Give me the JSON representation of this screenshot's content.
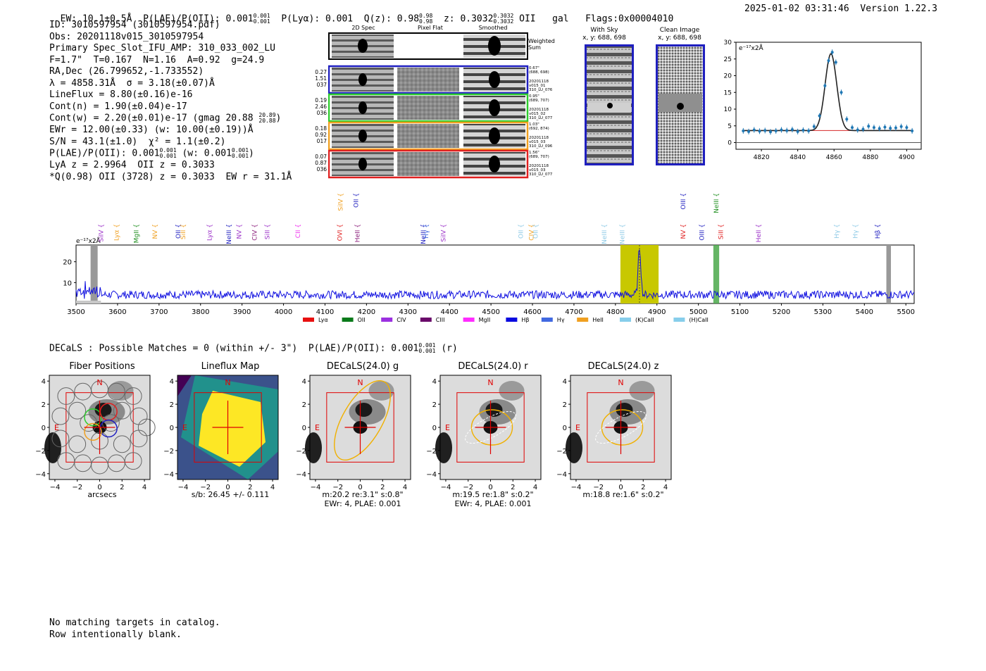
{
  "header": {
    "ew": "EW: 10.1±0.5Å",
    "plae": "P(LAE)/P(OII): 0.001",
    "plae_hi": "0.001",
    "plae_lo": "0.001",
    "plya": "P(Lyα): 0.001",
    "qz": "Q(z): 0.98",
    "qz_hi": "0.98",
    "qz_lo": "0.98",
    "z": "z: 0.3032",
    "z_hi": "0.3032",
    "z_lo": "0.3032",
    "line": "OII",
    "cls": "gal",
    "flags": "Flags:0x00004010",
    "timestamp": "2025-01-02 03:31:46",
    "version": "Version 1.22.3"
  },
  "info": {
    "id": "ID: 3010597954 (3010597954.pdf)",
    "obs": "Obs: 20201118v015_3010597954",
    "primary": "Primary Spec_Slot_IFU_AMP: 310_033_002_LU",
    "fiber": "F=1.7\"  T=0.167  N=1.16  A=0.92  g=24.9",
    "radec": "RA,Dec (26.799652,-1.733552)",
    "lambda": "λ = 4858.31Å  σ = 3.18(±0.07)Å",
    "lineflux": "LineFlux = 8.80(±0.16)e-16",
    "contn": "Cont(n) = 1.90(±0.04)e-17",
    "contw": "Cont(w) = 2.20(±0.01)e-17 (gmag 20.88",
    "gmag_hi": "20.89",
    "gmag_lo": "20.88",
    "ewr": "EWr = 12.00(±0.33) (w: 10.00(±0.19))Å",
    "sn": "S/N = 43.1(±1.0)  χ² = 1.1(±0.2)",
    "plae2": "P(LAE)/P(OII): 0.001",
    "plae2_hi": "0.001",
    "plae2_lo": "0.001",
    "plae2_w": "(w: 0.001",
    "plae2_w_hi": "0.001",
    "plae2_w_lo": "0.001",
    "lya": "LyA z = 2.9964  OII z = 0.3033",
    "q": "*Q(0.98) OII (3728) z = 0.3033  EW r = 31.1Å"
  },
  "cutouts": {
    "col_2d": "2D Spec",
    "col_flat": "Pixel Flat",
    "col_smooth": "Smoothed",
    "weighted": "Weighted\nSum",
    "rows": [
      {
        "left": "0.27\n1.51\n037",
        "right": "0.67\"\n(688, 698)\n\n20201118\nv015_01\n310_LU_076",
        "color": "#1f1fbf"
      },
      {
        "left": "0.19\n2.46\n036",
        "right": "0.95\"\n(689, 707)\n\n20201118\nv015_02\n310_LU_077",
        "color": "#2ecc2e"
      },
      {
        "left": "0.18\n0.92\n017",
        "right": "1.03\"\n(692, 874)\n\n20201118\nv015_03\n310_LU_096",
        "color": "#f0a020"
      },
      {
        "left": "0.07\n0.87\n036",
        "right": "1.56\"\n(689, 707)\n\n20201118\nv015_03\n310_LU_077",
        "color": "#e02020"
      }
    ]
  },
  "sky": {
    "with_sky": "With Sky",
    "with_sky_xy": "x, y: 688, 698",
    "clean": "Clean Image",
    "clean_xy": "x, y: 688, 698"
  },
  "zoom_chart": {
    "unit": "e⁻¹⁷x2Å",
    "yticks": [
      "30",
      "25",
      "20",
      "15",
      "10",
      "5",
      "0"
    ],
    "xticks": [
      "4820",
      "4840",
      "4860",
      "4880",
      "4900"
    ]
  },
  "chart_data": [
    {
      "type": "scatter",
      "title": "",
      "xlabel": "",
      "ylabel": "e⁻¹⁷x2Å",
      "xlim": [
        4806,
        4908
      ],
      "ylim": [
        -2,
        30
      ],
      "x": [
        4810,
        4813,
        4816,
        4819,
        4822,
        4825,
        4828,
        4831,
        4834,
        4837,
        4840,
        4843,
        4846,
        4849,
        4852,
        4855,
        4857,
        4859,
        4861,
        4864,
        4867,
        4870,
        4873,
        4876,
        4879,
        4882,
        4885,
        4888,
        4891,
        4894,
        4897,
        4900,
        4903
      ],
      "y": [
        3.5,
        3.3,
        3.8,
        3.4,
        3.6,
        3.2,
        3.5,
        3.8,
        3.6,
        3.9,
        3.3,
        3.7,
        3.5,
        4.8,
        8.0,
        17.0,
        24.5,
        27.0,
        24.0,
        15.0,
        7.0,
        4.5,
        3.8,
        4.0,
        4.9,
        4.5,
        4.2,
        4.6,
        4.3,
        4.4,
        4.8,
        4.5,
        3.5
      ],
      "fit_center": 4858.3,
      "fit_sigma": 3.18,
      "fit_amp": 23.0,
      "fit_cont": 3.6
    },
    {
      "type": "line",
      "title": "",
      "xlabel": "",
      "ylabel": "e⁻¹⁷x2Å",
      "xlim": [
        3500,
        5520
      ],
      "ylim": [
        0,
        28
      ],
      "xticks": [
        "3500",
        "3600",
        "3700",
        "3800",
        "3900",
        "4000",
        "4100",
        "4200",
        "4300",
        "4400",
        "4500",
        "4600",
        "4700",
        "4800",
        "4900",
        "5000",
        "5100",
        "5200",
        "5300",
        "5400",
        "5500"
      ],
      "yticks": [
        "20",
        "10"
      ],
      "continuum": 4.2,
      "peak_x": 4858,
      "peak_y": 27,
      "noise": 1.2
    }
  ],
  "spectrum": {
    "unit": "e⁻¹⁷x2Å",
    "lines": [
      {
        "label": "SiIV",
        "x": 3560,
        "color": "#9b30c8",
        "high": false
      },
      {
        "label": "Lyα",
        "x": 3598,
        "color": "#f0a020",
        "high": false
      },
      {
        "label": "MgII",
        "x": 3645,
        "color": "#1f8f1f",
        "high": false
      },
      {
        "label": "NV",
        "x": 3690,
        "color": "#f0a020",
        "high": false
      },
      {
        "label": "OII",
        "x": 3746,
        "color": "#1f1fbf",
        "high": false
      },
      {
        "label": "SiII",
        "x": 3758,
        "color": "#f0a020",
        "high": false
      },
      {
        "label": "Lyα",
        "x": 3822,
        "color": "#9b30c8",
        "high": false
      },
      {
        "label": "NeIII",
        "x": 3868,
        "color": "#1f1fbf",
        "high": false
      },
      {
        "label": "NV",
        "x": 3893,
        "color": "#9b30c8",
        "high": false
      },
      {
        "label": "CIV",
        "x": 3930,
        "color": "#8b1e7b",
        "high": false
      },
      {
        "label": "SiII",
        "x": 3961,
        "color": "#9b30c8",
        "high": false
      },
      {
        "label": "CII",
        "x": 4035,
        "color": "#ee30ee",
        "high": false
      },
      {
        "label": "OVI",
        "x": 4136,
        "color": "#e02020",
        "high": false
      },
      {
        "label": "HeII",
        "x": 4178,
        "color": "#8b1e7b",
        "high": false
      },
      {
        "label": "SiIV",
        "x": 4137,
        "color": "#f0a020",
        "high": true
      },
      {
        "label": "OII",
        "x": 4175,
        "color": "#1f1fbf",
        "high": true
      },
      {
        "label": "NeIII",
        "x": 4337,
        "color": "#1f1fbf",
        "high": false
      },
      {
        "label": "Hγ",
        "x": 4344,
        "color": "#4169e1",
        "high": false
      },
      {
        "label": "SiIV",
        "x": 4385,
        "color": "#9b30c8",
        "high": false
      },
      {
        "label": "OII",
        "x": 4572,
        "color": "#8ecae6",
        "high": false
      },
      {
        "label": "CIV",
        "x": 4597,
        "color": "#f0a020",
        "high": false
      },
      {
        "label": "OII",
        "x": 4608,
        "color": "#8ecae6",
        "high": false
      },
      {
        "label": "NeIII",
        "x": 4773,
        "color": "#8ecae6",
        "high": false
      },
      {
        "label": "NeIII",
        "x": 4816,
        "color": "#8ecae6",
        "high": false
      },
      {
        "label": "NV",
        "x": 4963,
        "color": "#e02020",
        "high": false
      },
      {
        "label": "OIII",
        "x": 5008,
        "color": "#1f1fbf",
        "high": false
      },
      {
        "label": "SiII",
        "x": 5054,
        "color": "#e02020",
        "high": false
      },
      {
        "label": "OIII",
        "x": 4963,
        "color": "#1f1fbf",
        "high": true
      },
      {
        "label": "NeIII",
        "x": 5043,
        "color": "#1f8f1f",
        "high": true
      },
      {
        "label": "HeII",
        "x": 5145,
        "color": "#9b30c8",
        "high": false
      },
      {
        "label": "Hγ",
        "x": 5333,
        "color": "#8ecae6",
        "high": false
      },
      {
        "label": "Hγ",
        "x": 5378,
        "color": "#8ecae6",
        "high": false
      },
      {
        "label": "Hβ",
        "x": 5432,
        "color": "#1f1fbf",
        "high": false
      }
    ],
    "legend": [
      {
        "label": "Lyα",
        "color": "#e81010"
      },
      {
        "label": "OII",
        "color": "#0a7a1a"
      },
      {
        "label": "CIV",
        "color": "#9b30e0"
      },
      {
        "label": "CIII",
        "color": "#6a0a6a"
      },
      {
        "label": "MgII",
        "color": "#ff2cff"
      },
      {
        "label": "Hβ",
        "color": "#0a0ae0"
      },
      {
        "label": "Hγ",
        "color": "#4169e1"
      },
      {
        "label": "HeII",
        "color": "#f0a020"
      },
      {
        "label": "(K)CaII",
        "color": "#87ceeb"
      },
      {
        "label": "(H)CaII",
        "color": "#87ceeb"
      }
    ]
  },
  "decals": {
    "header": "DECaLS : Possible Matches = 0 (within +/- 3\")  P(LAE)/P(OII): 0.001",
    "header_hi": "0.001",
    "header_lo": "0.001",
    "header_band": "(r)",
    "panels": [
      {
        "title": "Fiber Positions",
        "caption1": "arcsecs",
        "caption2": ""
      },
      {
        "title": "Lineflux Map",
        "caption1": "s/b: 26.45 +/- 0.111",
        "caption2": ""
      },
      {
        "title": "DECaLS(24.0) g",
        "caption1": "m:20.2  re:3.1\"  s:0.8\"",
        "caption2": "EWr: 4, PLAE: 0.001"
      },
      {
        "title": "DECaLS(24.0) r",
        "caption1": "m:19.5  re:1.8\"  s:0.2\"",
        "caption2": "EWr: 4, PLAE: 0.001"
      },
      {
        "title": "DECaLS(24.0) z",
        "caption1": "m:18.8  re:1.6\"  s:0.2\"",
        "caption2": ""
      }
    ],
    "ticks": [
      "4",
      "2",
      "0",
      "−2",
      "−4"
    ],
    "xticks": [
      "−4",
      "−2",
      "0",
      "2",
      "4"
    ],
    "north": "N",
    "east": "E"
  },
  "footer": {
    "line1": "No matching targets in catalog.",
    "line2": "Row intentionally blank."
  }
}
